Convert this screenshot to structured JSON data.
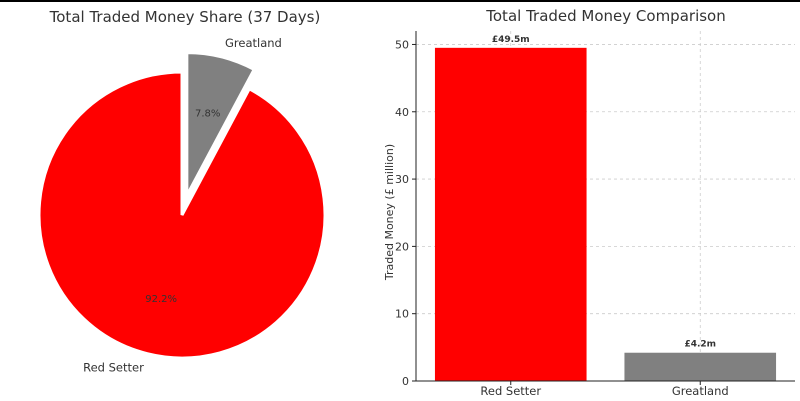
{
  "chart_data": [
    {
      "type": "pie",
      "title": "Total Traded Money Share (37 Days)",
      "categories": [
        "Red Setter",
        "Greatland"
      ],
      "values": [
        92.2,
        7.8
      ],
      "value_labels": [
        "92.2%",
        "7.8%"
      ],
      "colors": [
        "#ff0000",
        "#808080"
      ],
      "exploded": [
        "Greatland"
      ]
    },
    {
      "type": "bar",
      "title": "Total Traded Money Comparison",
      "categories": [
        "Red Setter",
        "Greatland"
      ],
      "values": [
        49.5,
        4.2
      ],
      "value_labels": [
        "£49.5m",
        "£4.2m"
      ],
      "colors": [
        "#ff0000",
        "#808080"
      ],
      "xlabel": "",
      "ylabel": "Traded Money (£ million)",
      "ylim": [
        0,
        52
      ],
      "yticks": [
        0,
        10,
        20,
        30,
        40,
        50
      ],
      "grid": true
    }
  ]
}
